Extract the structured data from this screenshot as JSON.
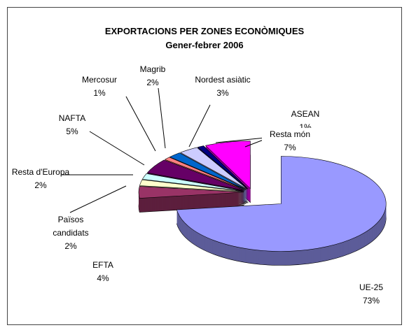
{
  "chart_data": {
    "type": "pie",
    "title": "EXPORTACIONS PER ZONES ECONÒMIQUES",
    "subtitle": "Gener-febrer 2006",
    "categories": [
      "UE-25",
      "EFTA",
      "Països candidats",
      "Resta d'Europa",
      "NAFTA",
      "Mercosur",
      "Magrib",
      "Nordest asiàtic",
      "ASEAN",
      "Resta món"
    ],
    "values": [
      73,
      4,
      2,
      2,
      5,
      1,
      2,
      3,
      1,
      7
    ],
    "value_labels": [
      "73%",
      "4%",
      "2%",
      "2%",
      "5%",
      "1%",
      "2%",
      "3%",
      "1%",
      "7%"
    ],
    "colors": [
      "#9999ff",
      "#993366",
      "#ffffcc",
      "#ccffff",
      "#660066",
      "#ff8080",
      "#0066cc",
      "#ccccff",
      "#000080",
      "#ff00ff"
    ]
  }
}
